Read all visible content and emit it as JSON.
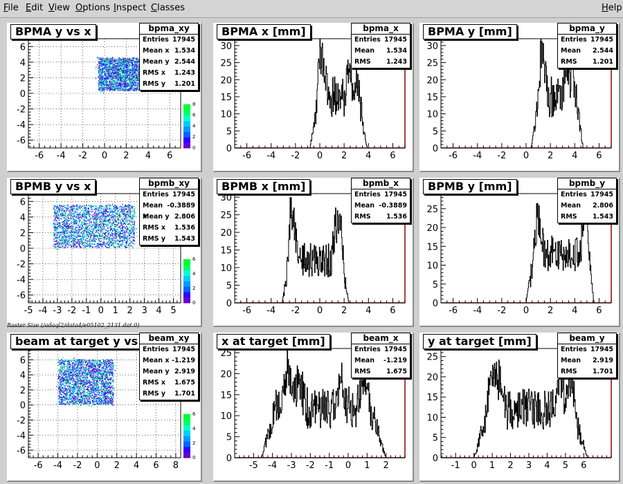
{
  "menu": {
    "items": [
      {
        "label": "File",
        "u": "F",
        "rest": "ile"
      },
      {
        "label": "Edit",
        "u": "E",
        "rest": "dit"
      },
      {
        "label": "View",
        "u": "V",
        "rest": "iew"
      },
      {
        "label": "Options",
        "u": "O",
        "rest": "ptions"
      },
      {
        "label": "Inspect",
        "u": "I",
        "rest": "nspect"
      },
      {
        "label": "Classes",
        "u": "C",
        "rest": "lasses"
      }
    ],
    "help": {
      "label": "Help",
      "u": "H",
      "rest": "elp"
    }
  },
  "raster_label": "Raster Size (/adaql2/data4/e05102_2131.dat.0)",
  "colors": {
    "histogram": "#000000",
    "frame": "#000000",
    "axis_zero": "#8b0000",
    "palette": [
      "#6600cc",
      "#3300ff",
      "#0066ff",
      "#0099ff",
      "#00ccff",
      "#00ffcc",
      "#00ff66",
      "#00ff33"
    ]
  },
  "chart_data": [
    {
      "type": "heatmap",
      "id": "bpma_xy",
      "title": "BPMA y vs x",
      "stats": {
        "name": "bpma_xy",
        "rows": [
          [
            "Entries",
            "17945"
          ],
          [
            "Mean x",
            "1.534"
          ],
          [
            "Mean y",
            "2.544"
          ],
          [
            "RMS x",
            "1.243"
          ],
          [
            "RMS y",
            "1.201"
          ]
        ]
      },
      "xlim": [
        -7,
        7
      ],
      "ylim": [
        -7,
        7
      ],
      "x_ticks": [
        -6,
        -4,
        -2,
        0,
        2,
        4,
        6
      ],
      "y_ticks": [
        -6,
        -4,
        -2,
        0,
        2,
        4,
        6
      ],
      "grid": true,
      "region": {
        "x": [
          -0.6,
          3.9
        ],
        "y": [
          0.4,
          4.6
        ]
      },
      "palette_ticks": [
        0,
        2,
        4,
        6,
        8
      ],
      "palette_max": 8
    },
    {
      "type": "bar",
      "id": "bpma_x",
      "title": "BPMA x [mm]",
      "stats": {
        "name": "bpma_x",
        "rows": [
          [
            "Entries",
            "17945"
          ],
          [
            "Mean",
            "1.534"
          ],
          [
            "RMS",
            "1.243"
          ]
        ]
      },
      "xlim": [
        -7,
        7
      ],
      "ylim": [
        0,
        32
      ],
      "x_ticks": [
        -6,
        -4,
        -2,
        0,
        2,
        4,
        6
      ],
      "y_ticks": [
        0,
        5,
        10,
        15,
        20,
        25,
        30
      ],
      "profile": {
        "rise": [
          -0.8,
          -0.1
        ],
        "fall": [
          3.2,
          3.9
        ],
        "plateau": 15,
        "noise": 6,
        "peaks": [
          [
            0.0,
            29
          ],
          [
            0.3,
            27
          ],
          [
            2.4,
            28
          ],
          [
            3.0,
            25
          ]
        ]
      }
    },
    {
      "type": "bar",
      "id": "bpma_y",
      "title": "BPMA y [mm]",
      "stats": {
        "name": "bpma_y",
        "rows": [
          [
            "Entries",
            "17945"
          ],
          [
            "Mean",
            "2.544"
          ],
          [
            "RMS",
            "1.201"
          ]
        ]
      },
      "xlim": [
        -7,
        7
      ],
      "ylim": [
        0,
        32
      ],
      "x_ticks": [
        -6,
        -4,
        -2,
        0,
        2,
        4,
        6
      ],
      "y_ticks": [
        0,
        5,
        10,
        15,
        20,
        25,
        30
      ],
      "profile": {
        "rise": [
          0.4,
          1.1
        ],
        "fall": [
          4.1,
          4.7
        ],
        "plateau": 15,
        "noise": 6,
        "peaks": [
          [
            1.2,
            28
          ],
          [
            1.5,
            26
          ],
          [
            3.3,
            29
          ],
          [
            3.8,
            27
          ]
        ]
      }
    },
    {
      "type": "heatmap",
      "id": "bpmb_xy",
      "title": "BPMB y vs x",
      "stats": {
        "name": "bpmb_xy",
        "rows": [
          [
            "Entries",
            "17945"
          ],
          [
            "Mean x",
            "-0.3889"
          ],
          [
            "Mean y",
            "2.806"
          ],
          [
            "RMS x",
            "1.536"
          ],
          [
            "RMS y",
            "1.543"
          ]
        ]
      },
      "xlim": [
        -5,
        5.5
      ],
      "ylim": [
        -7,
        7
      ],
      "x_ticks": [
        -5,
        -4,
        -3,
        -2,
        -1,
        0,
        1,
        2,
        3,
        4,
        5
      ],
      "y_ticks": [
        -6,
        -4,
        -2,
        0,
        2,
        4,
        6
      ],
      "grid": true,
      "region": {
        "x": [
          -3.3,
          2.3
        ],
        "y": [
          0.1,
          5.6
        ]
      },
      "palette_ticks": [
        0,
        2,
        4,
        6
      ],
      "palette_max": 6
    },
    {
      "type": "bar",
      "id": "bpmb_x",
      "title": "BPMB x [mm]",
      "stats": {
        "name": "bpmb_x",
        "rows": [
          [
            "Entries",
            "17945"
          ],
          [
            "Mean",
            "-0.3889"
          ],
          [
            "RMS",
            "1.536"
          ]
        ]
      },
      "xlim": [
        -7,
        7
      ],
      "ylim": [
        0,
        31
      ],
      "x_ticks": [
        -6,
        -4,
        -2,
        0,
        2,
        4,
        6
      ],
      "y_ticks": [
        0,
        5,
        10,
        15,
        20,
        25,
        30
      ],
      "profile": {
        "rise": [
          -3.1,
          -2.5
        ],
        "fall": [
          1.8,
          2.4
        ],
        "plateau": 12,
        "noise": 5,
        "peaks": [
          [
            -2.4,
            29
          ],
          [
            -2.1,
            24
          ],
          [
            1.3,
            25
          ],
          [
            1.7,
            27
          ]
        ]
      }
    },
    {
      "type": "bar",
      "id": "bpmb_y",
      "title": "BPMB y [mm]",
      "stats": {
        "name": "bpmb_y",
        "rows": [
          [
            "Entries",
            "17945"
          ],
          [
            "Mean",
            "2.806"
          ],
          [
            "RMS",
            "1.543"
          ]
        ]
      },
      "xlim": [
        -7,
        7
      ],
      "ylim": [
        0,
        29
      ],
      "x_ticks": [
        -6,
        -4,
        -2,
        0,
        2,
        4,
        6
      ],
      "y_ticks": [
        0,
        5,
        10,
        15,
        20,
        25
      ],
      "profile": {
        "rise": [
          0.0,
          0.7
        ],
        "fall": [
          5.0,
          5.6
        ],
        "plateau": 13,
        "noise": 5,
        "peaks": [
          [
            0.9,
            24
          ],
          [
            1.2,
            21
          ],
          [
            4.8,
            26
          ],
          [
            5.1,
            24
          ]
        ]
      }
    },
    {
      "type": "heatmap",
      "id": "beam_xy",
      "title": "beam at target y vs x",
      "stats": {
        "name": "beam_xy",
        "rows": [
          [
            "Entries",
            "17945"
          ],
          [
            "Mean x",
            "-1.219"
          ],
          [
            "Mean y",
            "2.919"
          ],
          [
            "RMS x",
            "1.675"
          ],
          [
            "RMS y",
            "1.701"
          ]
        ]
      },
      "xlim": [
        -7,
        8.5
      ],
      "ylim": [
        -7,
        7.5
      ],
      "x_ticks": [
        -6,
        -4,
        -2,
        0,
        2,
        4,
        6,
        8
      ],
      "y_ticks": [
        -6,
        -4,
        -2,
        0,
        2,
        4,
        6
      ],
      "grid": true,
      "region": {
        "x": [
          -4.0,
          1.6
        ],
        "y": [
          0.1,
          6.1
        ]
      },
      "palette_ticks": [
        0,
        2,
        4,
        6
      ],
      "palette_max": 6
    },
    {
      "type": "bar",
      "id": "beam_x",
      "title": "x at target [mm]",
      "stats": {
        "name": "beam_x",
        "rows": [
          [
            "Entries",
            "17945"
          ],
          [
            "Mean",
            "-1.219"
          ],
          [
            "RMS",
            "1.675"
          ]
        ]
      },
      "xlim": [
        -6,
        3
      ],
      "ylim": [
        0,
        26
      ],
      "x_ticks": [
        -5,
        -4,
        -3,
        -2,
        -1,
        0,
        1,
        2
      ],
      "y_ticks": [
        0,
        5,
        10,
        15,
        20,
        25
      ],
      "profile": {
        "rise": [
          -4.6,
          -3.8
        ],
        "fall": [
          1.2,
          2.0
        ],
        "plateau": 12,
        "noise": 5,
        "peaks": [
          [
            -3.2,
            25
          ],
          [
            -2.6,
            22
          ],
          [
            -0.4,
            21
          ],
          [
            0.8,
            22
          ]
        ]
      }
    },
    {
      "type": "bar",
      "id": "beam_y",
      "title": "y at target [mm]",
      "stats": {
        "name": "beam_y",
        "rows": [
          [
            "Entries",
            "17945"
          ],
          [
            "Mean",
            "2.919"
          ],
          [
            "RMS",
            "1.701"
          ]
        ]
      },
      "xlim": [
        -1.8,
        7.5
      ],
      "ylim": [
        0,
        27
      ],
      "x_ticks": [
        -1,
        0,
        1,
        2,
        3,
        4,
        5,
        6
      ],
      "y_ticks": [
        0,
        5,
        10,
        15,
        20,
        25
      ],
      "profile": {
        "rise": [
          0.0,
          0.8
        ],
        "fall": [
          5.4,
          6.2
        ],
        "plateau": 12,
        "noise": 5,
        "peaks": [
          [
            1.0,
            25
          ],
          [
            1.4,
            22
          ],
          [
            4.7,
            24
          ],
          [
            5.3,
            23
          ]
        ]
      }
    }
  ]
}
